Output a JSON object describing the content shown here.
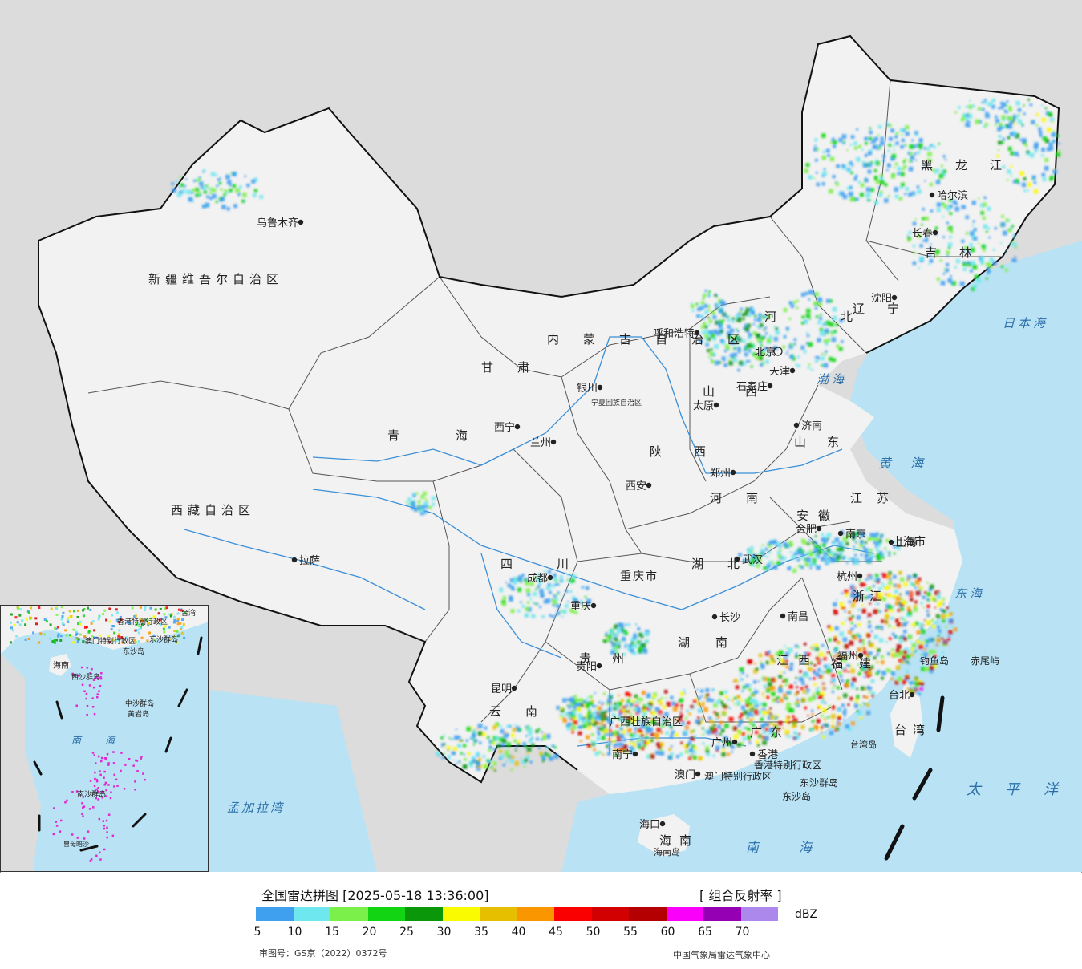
{
  "legend": {
    "title": "全国雷达拼图 [2025-05-18 13:36:00]",
    "product": "[ 组合反射率 ]",
    "unit": "dBZ",
    "approval_number": "审图号：GS京（2022）0372号",
    "agency": "中国气象局雷达气象中心",
    "ticks": [
      "5",
      "10",
      "15",
      "20",
      "25",
      "30",
      "35",
      "40",
      "45",
      "50",
      "55",
      "60",
      "65",
      "70"
    ],
    "colors": [
      "#3fa0f0",
      "#6ee8ee",
      "#7cf04a",
      "#12d412",
      "#0a980a",
      "#fafa00",
      "#e6c000",
      "#fa9600",
      "#fa0000",
      "#d20000",
      "#b40000",
      "#fa00fa",
      "#9600b4",
      "#ac88ec"
    ]
  },
  "map": {
    "colors": {
      "land": "#f2f2f2",
      "foreign": "#dcdcdc",
      "sea": "#b9e3f5",
      "border": "#111111",
      "province": "#555555",
      "river": "#3a8fd8"
    },
    "regions": [
      {
        "name": "新疆维吾尔自治区"
      },
      {
        "name": "西藏自治区"
      },
      {
        "name": "青海"
      },
      {
        "name": "甘肃"
      },
      {
        "name": "内蒙古自治区"
      },
      {
        "name": "黑龙江"
      },
      {
        "name": "吉林"
      },
      {
        "name": "辽宁"
      },
      {
        "name": "河北"
      },
      {
        "name": "山西"
      },
      {
        "name": "陕西"
      },
      {
        "name": "宁夏回族自治区"
      },
      {
        "name": "四川"
      },
      {
        "name": "重庆市"
      },
      {
        "name": "湖北"
      },
      {
        "name": "河南"
      },
      {
        "name": "山东"
      },
      {
        "name": "江苏"
      },
      {
        "name": "安徽"
      },
      {
        "name": "上海市"
      },
      {
        "name": "浙江"
      },
      {
        "name": "江西"
      },
      {
        "name": "湖南"
      },
      {
        "name": "贵州"
      },
      {
        "name": "云南"
      },
      {
        "name": "广西壮族自治区"
      },
      {
        "name": "广东"
      },
      {
        "name": "福建"
      },
      {
        "name": "台湾"
      },
      {
        "name": "海南"
      },
      {
        "name": "香港特别行政区"
      },
      {
        "name": "澳门特别行政区"
      }
    ],
    "cities": [
      {
        "name": "乌鲁木齐"
      },
      {
        "name": "拉萨"
      },
      {
        "name": "西宁"
      },
      {
        "name": "兰州"
      },
      {
        "name": "银川"
      },
      {
        "name": "呼和浩特"
      },
      {
        "name": "北京"
      },
      {
        "name": "天津"
      },
      {
        "name": "石家庄"
      },
      {
        "name": "太原"
      },
      {
        "name": "济南"
      },
      {
        "name": "郑州"
      },
      {
        "name": "西安"
      },
      {
        "name": "成都"
      },
      {
        "name": "重庆"
      },
      {
        "name": "武汉"
      },
      {
        "name": "合肥"
      },
      {
        "name": "南京"
      },
      {
        "name": "上海"
      },
      {
        "name": "杭州"
      },
      {
        "name": "南昌"
      },
      {
        "name": "长沙"
      },
      {
        "name": "贵阳"
      },
      {
        "name": "昆明"
      },
      {
        "name": "南宁"
      },
      {
        "name": "广州"
      },
      {
        "name": "福州"
      },
      {
        "name": "台北"
      },
      {
        "name": "海口"
      },
      {
        "name": "哈尔滨"
      },
      {
        "name": "长春"
      },
      {
        "name": "沈阳"
      },
      {
        "name": "香港"
      },
      {
        "name": "澳门"
      }
    ],
    "seas": [
      {
        "name": "日本海"
      },
      {
        "name": "渤海"
      },
      {
        "name": "黄海"
      },
      {
        "name": "东海"
      },
      {
        "name": "太平洋"
      },
      {
        "name": "南海"
      },
      {
        "name": "孟加拉湾"
      }
    ],
    "islands": [
      {
        "name": "钓鱼岛"
      },
      {
        "name": "赤尾屿"
      },
      {
        "name": "台湾岛"
      },
      {
        "name": "东沙群岛"
      },
      {
        "name": "东沙岛"
      },
      {
        "name": "海南岛"
      }
    ],
    "inset": {
      "labels": [
        {
          "name": "香港特别行政区"
        },
        {
          "name": "澳门特别行政区"
        },
        {
          "name": "东沙群岛"
        },
        {
          "name": "东沙岛"
        },
        {
          "name": "海南"
        },
        {
          "name": "西沙群岛"
        },
        {
          "name": "中沙群岛"
        },
        {
          "name": "黄岩岛"
        },
        {
          "name": "南海"
        },
        {
          "name": "南沙群岛"
        },
        {
          "name": "曾母暗沙"
        },
        {
          "name": "台湾"
        }
      ]
    }
  }
}
